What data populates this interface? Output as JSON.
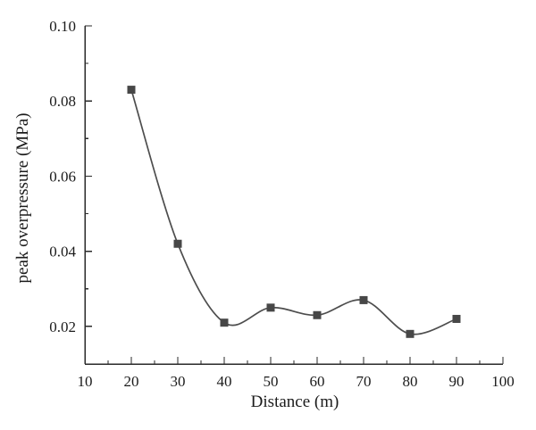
{
  "figure": {
    "background": "#ffffff"
  },
  "chart_data": {
    "type": "line",
    "series": [
      {
        "name": "peak overpressure",
        "x": [
          20,
          30,
          40,
          50,
          60,
          70,
          80,
          90
        ],
        "y": [
          0.083,
          0.042,
          0.021,
          0.025,
          0.023,
          0.027,
          0.018,
          0.022
        ]
      }
    ],
    "title": "",
    "xlabel": "Distance (m)",
    "ylabel": "peak overpressure (MPa)",
    "xlim": [
      10,
      100
    ],
    "ylim": [
      0.01,
      0.1
    ],
    "x_major_ticks": [
      10,
      20,
      30,
      40,
      50,
      60,
      70,
      80,
      90,
      100
    ],
    "y_major_ticks": [
      0.02,
      0.04,
      0.06,
      0.08,
      0.1
    ],
    "x_minor_step": 5,
    "y_minor_step": 0.01,
    "y_tick_decimals": 2,
    "grid": false,
    "legend_position": "none",
    "marker": "square",
    "line_style": "smooth-spline",
    "colors": {
      "line": "#4d4d4d",
      "marker": "#474747",
      "axis": "#2a2a2a",
      "text": "#1b1b1b",
      "background": "#ffffff"
    }
  }
}
